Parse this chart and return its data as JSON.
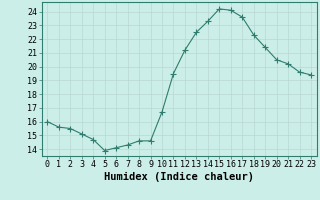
{
  "xlabel": "Humidex (Indice chaleur)",
  "x": [
    0,
    1,
    2,
    3,
    4,
    5,
    6,
    7,
    8,
    9,
    10,
    11,
    12,
    13,
    14,
    15,
    16,
    17,
    18,
    19,
    20,
    21,
    22,
    23
  ],
  "y": [
    16.0,
    15.6,
    15.5,
    15.1,
    14.7,
    13.9,
    14.1,
    14.3,
    14.6,
    14.6,
    16.7,
    19.5,
    21.2,
    22.5,
    23.3,
    24.2,
    24.1,
    23.6,
    22.3,
    21.4,
    20.5,
    20.2,
    19.6,
    19.4
  ],
  "line_color": "#2e7d6e",
  "marker": "+",
  "marker_size": 4,
  "bg_color": "#cceee8",
  "grid_color": "#b8d8d4",
  "ylim": [
    13.5,
    24.7
  ],
  "yticks": [
    14,
    15,
    16,
    17,
    18,
    19,
    20,
    21,
    22,
    23,
    24
  ],
  "xlim": [
    -0.5,
    23.5
  ],
  "tick_fontsize": 6,
  "xlabel_fontsize": 7.5
}
